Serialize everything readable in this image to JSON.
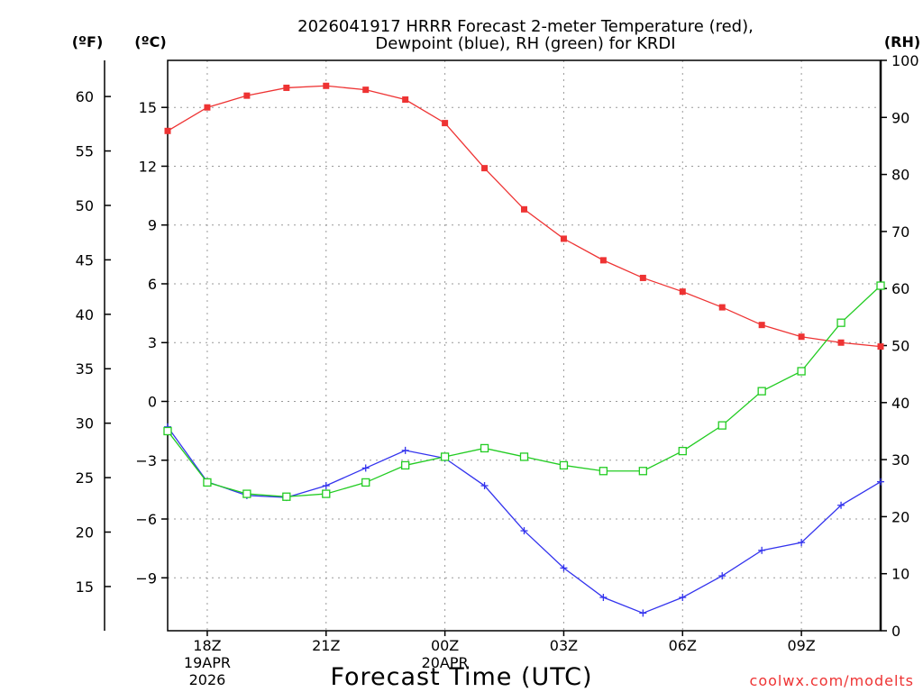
{
  "chart_data": {
    "type": "line",
    "title_line1": "2026041917 HRRR Forecast 2-meter Temperature (red),",
    "title_line2": "Dewpoint (blue), RH (green) for KRDI",
    "xlabel": "Forecast Time (UTC)",
    "credit": "coolwx.com/modelts",
    "left_outer_axis_label": "(ºF)",
    "left_axis_label": "(ºC)",
    "right_axis_label": "(RH)",
    "x_hours": [
      17,
      18,
      19,
      20,
      21,
      22,
      23,
      24,
      25,
      26,
      27,
      28,
      29,
      30,
      31,
      32,
      33,
      34,
      35
    ],
    "x_ticks": [
      {
        "hour": 18,
        "label": "18Z",
        "sub1": "19APR",
        "sub2": "2026"
      },
      {
        "hour": 21,
        "label": "21Z",
        "sub1": "",
        "sub2": ""
      },
      {
        "hour": 24,
        "label": "00Z",
        "sub1": "20APR",
        "sub2": ""
      },
      {
        "hour": 27,
        "label": "03Z",
        "sub1": "",
        "sub2": ""
      },
      {
        "hour": 30,
        "label": "06Z",
        "sub1": "",
        "sub2": ""
      },
      {
        "hour": 33,
        "label": "09Z",
        "sub1": "",
        "sub2": ""
      }
    ],
    "celsius_ticks": [
      "15",
      "12",
      "9",
      "6",
      "3",
      "0",
      "−3",
      "−6",
      "−9"
    ],
    "celsius_tick_values": [
      15,
      12,
      9,
      6,
      3,
      0,
      -3,
      -6,
      -9
    ],
    "fahrenheit_ticks": [
      "60",
      "55",
      "50",
      "45",
      "40",
      "35",
      "30",
      "25",
      "20",
      "15"
    ],
    "fahrenheit_tick_values": [
      60,
      55,
      50,
      45,
      40,
      35,
      30,
      25,
      20,
      15
    ],
    "rh_ticks": [
      "100",
      "90",
      "80",
      "70",
      "60",
      "50",
      "40",
      "30",
      "20",
      "10",
      "0"
    ],
    "rh_tick_values": [
      100,
      90,
      80,
      70,
      60,
      50,
      40,
      30,
      20,
      10,
      0
    ],
    "celsius_range": [
      -11.7,
      17.4
    ],
    "rh_range": [
      0,
      100
    ],
    "series": [
      {
        "name": "Temperature",
        "unit": "C",
        "color": "#ee3333",
        "marker": "filled-square",
        "values": [
          13.8,
          15.0,
          15.6,
          16.0,
          16.1,
          15.9,
          15.4,
          14.2,
          11.9,
          9.8,
          8.3,
          7.2,
          6.3,
          5.6,
          4.8,
          3.9,
          3.3,
          3.0,
          2.8
        ]
      },
      {
        "name": "Dewpoint",
        "unit": "C",
        "color": "#3333ee",
        "marker": "plus",
        "values": [
          -1.3,
          -4.1,
          -4.8,
          -4.9,
          -4.3,
          -3.4,
          -2.5,
          -2.9,
          -4.3,
          -6.6,
          -8.5,
          -10.0,
          -10.8,
          -10.0,
          -8.9,
          -7.6,
          -7.2,
          -5.3,
          -4.1
        ]
      },
      {
        "name": "RH",
        "unit": "%",
        "color": "#22cc22",
        "marker": "open-square",
        "values": [
          35,
          26,
          24,
          23.5,
          24,
          26,
          29,
          30.5,
          32,
          30.5,
          29,
          28,
          28,
          31.5,
          36,
          42,
          45.5,
          54,
          60.5
        ]
      }
    ]
  }
}
